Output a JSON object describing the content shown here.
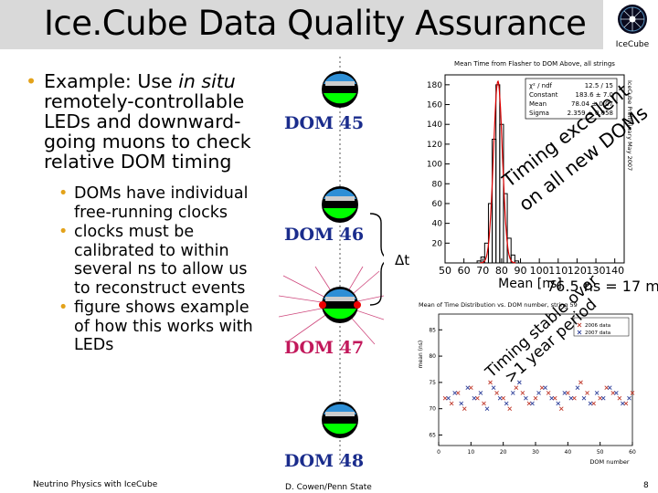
{
  "title": "Ice.Cube Data Quality Assurance",
  "logo": {
    "text": "IceCube"
  },
  "main_bullet": {
    "text_before": "Example: Use ",
    "italic": "in situ",
    "text_after": " remotely-controllable LEDs and downward-going muons to check relative DOM timing"
  },
  "sub_bullets": [
    "DOMs have individual free-running clocks",
    "clocks must be calibrated to within several ns to allow us to reconstruct events",
    "figure shows example of how this works with LEDs"
  ],
  "diagram": {
    "dom_labels": [
      "DOM 45",
      "DOM 46",
      "DOM 47",
      "DOM 48"
    ],
    "delta_t": "Δt"
  },
  "hist": {
    "title": "Mean Time from Flasher to DOM Above, all strings",
    "stats": [
      {
        "label": "χ² / ndf",
        "value": "12.5 / 15"
      },
      {
        "label": "Constant",
        "value": "183.6 ± 7.0"
      },
      {
        "label": "Mean",
        "value": "78.04 ± 0.07"
      },
      {
        "label": "Sigma",
        "value": "2.359 ± 0.058"
      }
    ],
    "y_ticks": [
      "180",
      "160",
      "140",
      "120",
      "100",
      "80",
      "60",
      "40",
      "20"
    ],
    "x_ticks": [
      "50",
      "60",
      "70",
      "80",
      "90",
      "100",
      "110",
      "120",
      "130",
      "140"
    ],
    "xlabel": "Mean [ns]",
    "side_label": "IceCube Preliminary May 2007",
    "annotation_line1": "Timing excellent",
    "annotation_line2": "on all new DOMs",
    "result": "76.5 ns = 17 m"
  },
  "scatter": {
    "title": "Mean of Time Distribution vs. DOM number, string 59",
    "ylabel": "mean (ns)",
    "xlabel": "DOM number",
    "y_ticks": [
      "85",
      "80",
      "75",
      "70",
      "65"
    ],
    "x_ticks": [
      "0",
      "10",
      "20",
      "30",
      "40",
      "50",
      "60"
    ],
    "legend": [
      "2006 data",
      "2007 data"
    ],
    "annotation_line1": "Timing stable over",
    "annotation_line2": ">1 year period"
  },
  "chart_data": [
    {
      "type": "bar",
      "title": "Mean Time from Flasher to DOM Above, all strings",
      "xlabel": "Mean [ns]",
      "ylabel": "",
      "xlim": [
        50,
        145
      ],
      "ylim": [
        0,
        190
      ],
      "categories": [
        68,
        70,
        72,
        74,
        76,
        78,
        80,
        82,
        84,
        86,
        88
      ],
      "values": [
        2,
        6,
        20,
        60,
        125,
        180,
        140,
        70,
        25,
        8,
        2
      ],
      "fit": {
        "type": "gaussian",
        "constant": 183.6,
        "mean": 78.04,
        "sigma": 2.359
      }
    },
    {
      "type": "scatter",
      "title": "Mean of Time Distribution vs. DOM number, string 59",
      "xlabel": "DOM number",
      "ylabel": "mean (ns)",
      "xlim": [
        0,
        60
      ],
      "ylim": [
        63,
        88
      ],
      "series": [
        {
          "name": "2006 data",
          "x": [
            2,
            4,
            6,
            8,
            10,
            12,
            14,
            16,
            18,
            20,
            22,
            24,
            26,
            28,
            30,
            32,
            34,
            36,
            38,
            40,
            42,
            44,
            46,
            48,
            50,
            52,
            54,
            56,
            58,
            60
          ],
          "y": [
            72,
            71,
            73,
            70,
            74,
            72,
            71,
            75,
            73,
            72,
            70,
            74,
            73,
            71,
            72,
            74,
            73,
            72,
            70,
            73,
            72,
            75,
            73,
            71,
            72,
            74,
            73,
            72,
            71,
            73
          ]
        },
        {
          "name": "2007 data",
          "x": [
            3,
            5,
            7,
            9,
            11,
            13,
            15,
            17,
            19,
            21,
            23,
            25,
            27,
            29,
            31,
            33,
            35,
            37,
            39,
            41,
            43,
            45,
            47,
            49,
            51,
            53,
            55,
            57,
            59
          ],
          "y": [
            72,
            73,
            71,
            74,
            72,
            73,
            70,
            74,
            72,
            71,
            73,
            75,
            72,
            71,
            73,
            74,
            72,
            71,
            73,
            72,
            74,
            72,
            71,
            73,
            72,
            74,
            73,
            71,
            72
          ]
        }
      ]
    }
  ],
  "footer": {
    "left": "Neutrino Physics with IceCube",
    "center": "D. Cowen/Penn State",
    "page": "8"
  }
}
